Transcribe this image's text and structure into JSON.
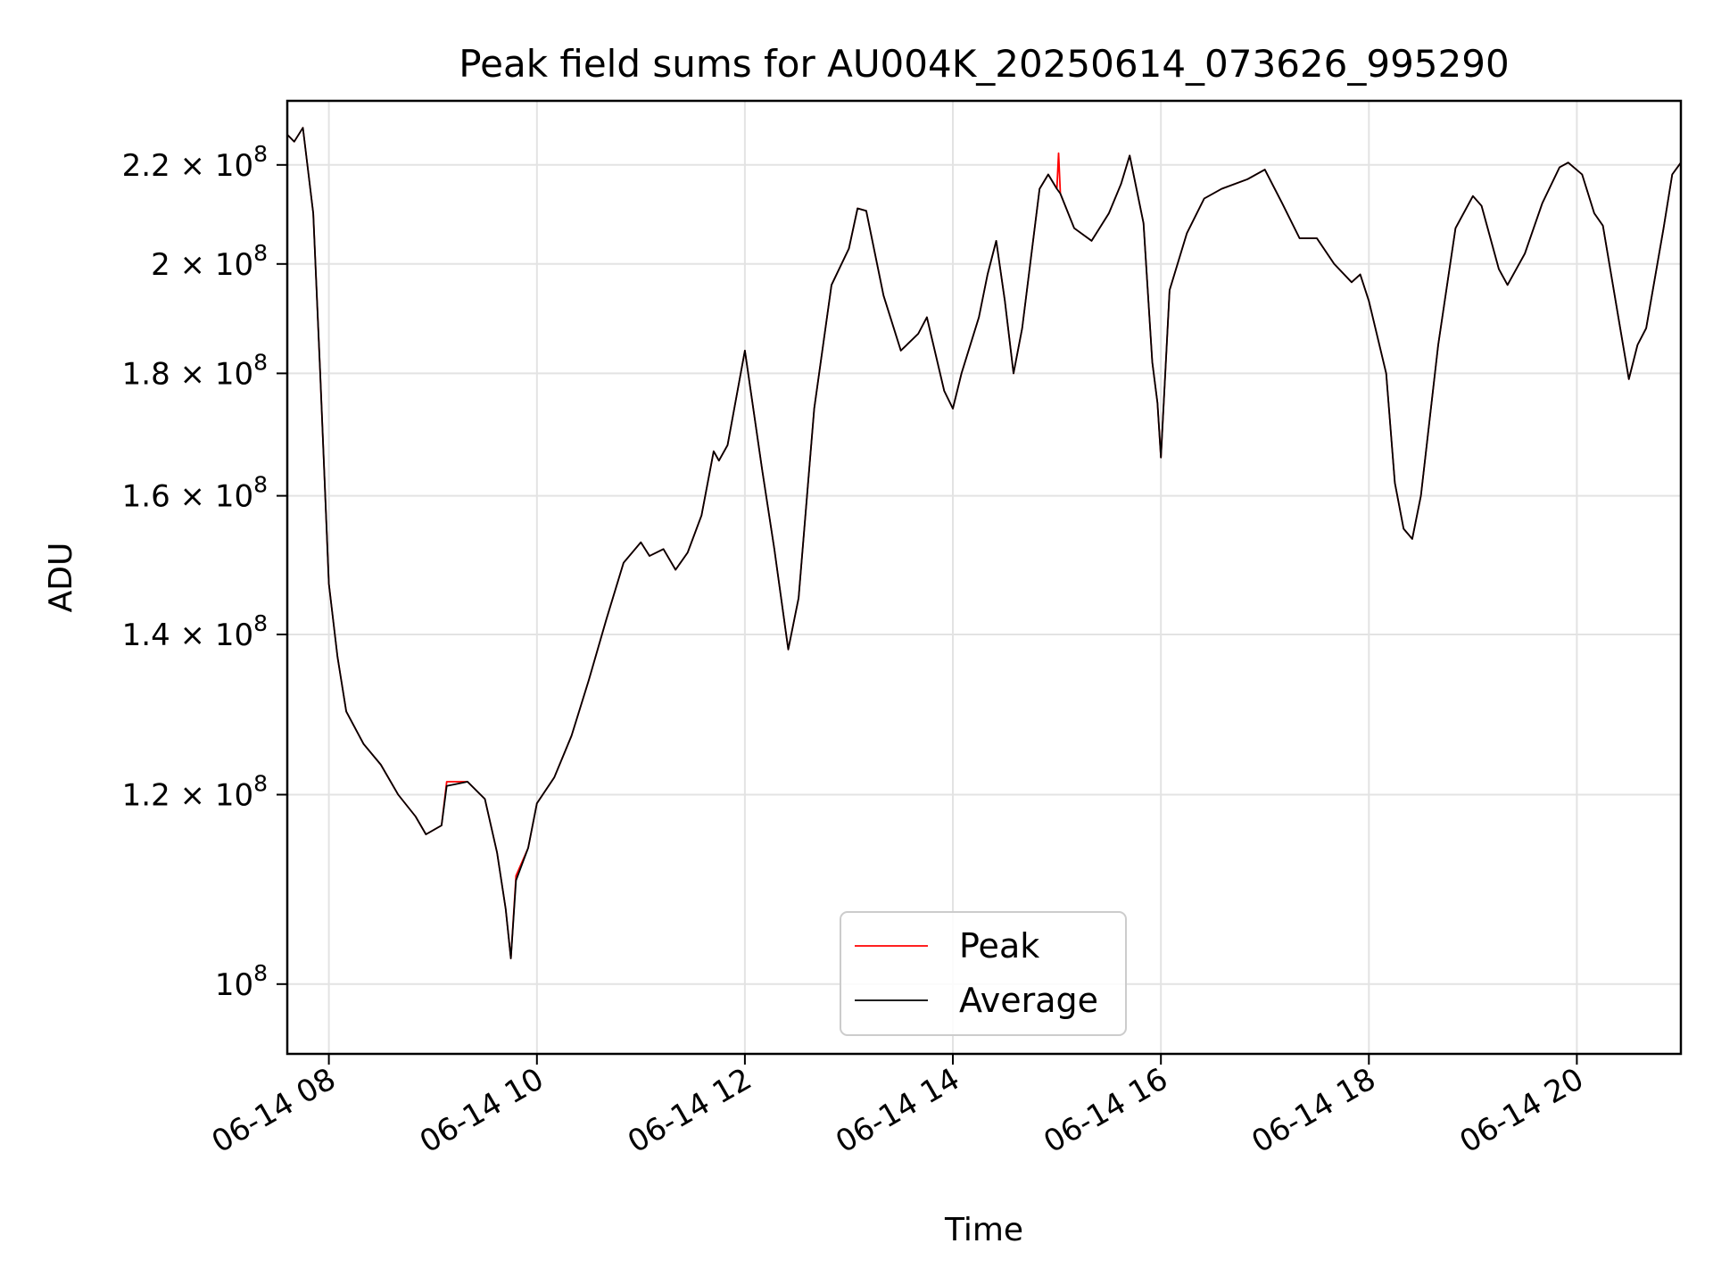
{
  "chart_data": {
    "type": "line",
    "title": "Peak field sums for AU004K_20250614_073626_995290",
    "xlabel": "Time",
    "ylabel": "ADU",
    "x_scale": "time",
    "y_scale": "log",
    "xlim": [
      "2025-06-14 07:36",
      "2025-06-14 21:00"
    ],
    "ylim": [
      93500000,
      234000000
    ],
    "grid": true,
    "legend_position": "lower center",
    "xticks": [
      {
        "value": "2025-06-14 08:00",
        "label": "06-14 08"
      },
      {
        "value": "2025-06-14 10:00",
        "label": "06-14 10"
      },
      {
        "value": "2025-06-14 12:00",
        "label": "06-14 12"
      },
      {
        "value": "2025-06-14 14:00",
        "label": "06-14 14"
      },
      {
        "value": "2025-06-14 16:00",
        "label": "06-14 16"
      },
      {
        "value": "2025-06-14 18:00",
        "label": "06-14 18"
      },
      {
        "value": "2025-06-14 20:00",
        "label": "06-14 20"
      }
    ],
    "yticks": [
      {
        "value": 100000000,
        "mantissa": "",
        "exp": "8"
      },
      {
        "value": 120000000,
        "mantissa": "1.2",
        "exp": "8"
      },
      {
        "value": 140000000,
        "mantissa": "1.4",
        "exp": "8"
      },
      {
        "value": 160000000,
        "mantissa": "1.6",
        "exp": "8"
      },
      {
        "value": 180000000,
        "mantissa": "1.8",
        "exp": "8"
      },
      {
        "value": 200000000,
        "mantissa": "2",
        "exp": "8"
      },
      {
        "value": 220000000,
        "mantissa": "2.2",
        "exp": "8"
      }
    ],
    "series": [
      {
        "name": "Peak",
        "color": "#ff0000",
        "points": [
          [
            "2025-06-14 07:36",
            226500000
          ],
          [
            "2025-06-14 07:40",
            225000000
          ],
          [
            "2025-06-14 07:45",
            228000000
          ],
          [
            "2025-06-14 07:51",
            210000000
          ],
          [
            "2025-06-14 07:55",
            180000000
          ],
          [
            "2025-06-14 08:00",
            147000000
          ],
          [
            "2025-06-14 08:05",
            137000000
          ],
          [
            "2025-06-14 08:10",
            130000000
          ],
          [
            "2025-06-14 08:20",
            126000000
          ],
          [
            "2025-06-14 08:30",
            123500000
          ],
          [
            "2025-06-14 08:40",
            120000000
          ],
          [
            "2025-06-14 08:50",
            117500000
          ],
          [
            "2025-06-14 08:56",
            115500000
          ],
          [
            "2025-06-14 09:05",
            116500000
          ],
          [
            "2025-06-14 09:08",
            121500000
          ],
          [
            "2025-06-14 09:20",
            121500000
          ],
          [
            "2025-06-14 09:30",
            119500000
          ],
          [
            "2025-06-14 09:37",
            113500000
          ],
          [
            "2025-06-14 09:42",
            107500000
          ],
          [
            "2025-06-14 09:45",
            102500000
          ],
          [
            "2025-06-14 09:48",
            111000000
          ],
          [
            "2025-06-14 09:55",
            114000000
          ],
          [
            "2025-06-14 10:00",
            119000000
          ],
          [
            "2025-06-14 10:10",
            122000000
          ],
          [
            "2025-06-14 10:20",
            127000000
          ],
          [
            "2025-06-14 10:30",
            134000000
          ],
          [
            "2025-06-14 10:40",
            142000000
          ],
          [
            "2025-06-14 10:50",
            150000000
          ],
          [
            "2025-06-14 11:00",
            153000000
          ],
          [
            "2025-06-14 11:05",
            151000000
          ],
          [
            "2025-06-14 11:13",
            152000000
          ],
          [
            "2025-06-14 11:20",
            149000000
          ],
          [
            "2025-06-14 11:27",
            151500000
          ],
          [
            "2025-06-14 11:35",
            157000000
          ],
          [
            "2025-06-14 11:42",
            167000000
          ],
          [
            "2025-06-14 11:45",
            165500000
          ],
          [
            "2025-06-14 11:50",
            168000000
          ],
          [
            "2025-06-14 12:00",
            184000000
          ],
          [
            "2025-06-14 12:10",
            164000000
          ],
          [
            "2025-06-14 12:17",
            152000000
          ],
          [
            "2025-06-14 12:25",
            138000000
          ],
          [
            "2025-06-14 12:31",
            145000000
          ],
          [
            "2025-06-14 12:40",
            174000000
          ],
          [
            "2025-06-14 12:50",
            196000000
          ],
          [
            "2025-06-14 13:00",
            203000000
          ],
          [
            "2025-06-14 13:05",
            211000000
          ],
          [
            "2025-06-14 13:10",
            210500000
          ],
          [
            "2025-06-14 13:20",
            194000000
          ],
          [
            "2025-06-14 13:30",
            184000000
          ],
          [
            "2025-06-14 13:40",
            187000000
          ],
          [
            "2025-06-14 13:45",
            190000000
          ],
          [
            "2025-06-14 13:55",
            177000000
          ],
          [
            "2025-06-14 14:00",
            174000000
          ],
          [
            "2025-06-14 14:05",
            180000000
          ],
          [
            "2025-06-14 14:15",
            190000000
          ],
          [
            "2025-06-14 14:20",
            198000000
          ],
          [
            "2025-06-14 14:25",
            204500000
          ],
          [
            "2025-06-14 14:30",
            193000000
          ],
          [
            "2025-06-14 14:35",
            180000000
          ],
          [
            "2025-06-14 14:40",
            188000000
          ],
          [
            "2025-06-14 14:50",
            215000000
          ],
          [
            "2025-06-14 14:55",
            218000000
          ],
          [
            "2025-06-14 15:00",
            215000000
          ],
          [
            "2025-06-14 15:01",
            222500000
          ],
          [
            "2025-06-14 15:02",
            214000000
          ],
          [
            "2025-06-14 15:10",
            207000000
          ],
          [
            "2025-06-14 15:20",
            204500000
          ],
          [
            "2025-06-14 15:30",
            210000000
          ],
          [
            "2025-06-14 15:37",
            216000000
          ],
          [
            "2025-06-14 15:42",
            222000000
          ],
          [
            "2025-06-14 15:50",
            208000000
          ],
          [
            "2025-06-14 15:55",
            182000000
          ],
          [
            "2025-06-14 15:58",
            175000000
          ],
          [
            "2025-06-14 16:00",
            166000000
          ],
          [
            "2025-06-14 16:05",
            195000000
          ],
          [
            "2025-06-14 16:15",
            206000000
          ],
          [
            "2025-06-14 16:25",
            213000000
          ],
          [
            "2025-06-14 16:35",
            215000000
          ],
          [
            "2025-06-14 16:50",
            217000000
          ],
          [
            "2025-06-14 17:00",
            219000000
          ],
          [
            "2025-06-14 17:10",
            212000000
          ],
          [
            "2025-06-14 17:20",
            205000000
          ],
          [
            "2025-06-14 17:30",
            205000000
          ],
          [
            "2025-06-14 17:40",
            200000000
          ],
          [
            "2025-06-14 17:50",
            196500000
          ],
          [
            "2025-06-14 17:55",
            198000000
          ],
          [
            "2025-06-14 18:00",
            193000000
          ],
          [
            "2025-06-14 18:10",
            180000000
          ],
          [
            "2025-06-14 18:15",
            162000000
          ],
          [
            "2025-06-14 18:20",
            155000000
          ],
          [
            "2025-06-14 18:25",
            153500000
          ],
          [
            "2025-06-14 18:30",
            160000000
          ],
          [
            "2025-06-14 18:40",
            185000000
          ],
          [
            "2025-06-14 18:50",
            207000000
          ],
          [
            "2025-06-14 19:00",
            213500000
          ],
          [
            "2025-06-14 19:05",
            211500000
          ],
          [
            "2025-06-14 19:15",
            199000000
          ],
          [
            "2025-06-14 19:20",
            196000000
          ],
          [
            "2025-06-14 19:30",
            202000000
          ],
          [
            "2025-06-14 19:40",
            212000000
          ],
          [
            "2025-06-14 19:50",
            219500000
          ],
          [
            "2025-06-14 19:55",
            220500000
          ],
          [
            "2025-06-14 20:03",
            218000000
          ],
          [
            "2025-06-14 20:10",
            210000000
          ],
          [
            "2025-06-14 20:15",
            207500000
          ],
          [
            "2025-06-14 20:25",
            188000000
          ],
          [
            "2025-06-14 20:30",
            179000000
          ],
          [
            "2025-06-14 20:35",
            185000000
          ],
          [
            "2025-06-14 20:40",
            188000000
          ],
          [
            "2025-06-14 20:50",
            207000000
          ],
          [
            "2025-06-14 20:55",
            218000000
          ],
          [
            "2025-06-14 21:00",
            220500000
          ]
        ]
      },
      {
        "name": "Average",
        "color": "#000000",
        "points": [
          [
            "2025-06-14 07:36",
            226500000
          ],
          [
            "2025-06-14 07:40",
            225000000
          ],
          [
            "2025-06-14 07:45",
            228000000
          ],
          [
            "2025-06-14 07:51",
            210000000
          ],
          [
            "2025-06-14 07:55",
            180000000
          ],
          [
            "2025-06-14 08:00",
            147000000
          ],
          [
            "2025-06-14 08:05",
            137000000
          ],
          [
            "2025-06-14 08:10",
            130000000
          ],
          [
            "2025-06-14 08:20",
            126000000
          ],
          [
            "2025-06-14 08:30",
            123500000
          ],
          [
            "2025-06-14 08:40",
            120000000
          ],
          [
            "2025-06-14 08:50",
            117500000
          ],
          [
            "2025-06-14 08:56",
            115500000
          ],
          [
            "2025-06-14 09:05",
            116500000
          ],
          [
            "2025-06-14 09:08",
            121000000
          ],
          [
            "2025-06-14 09:20",
            121500000
          ],
          [
            "2025-06-14 09:30",
            119500000
          ],
          [
            "2025-06-14 09:37",
            113500000
          ],
          [
            "2025-06-14 09:42",
            107500000
          ],
          [
            "2025-06-14 09:45",
            102500000
          ],
          [
            "2025-06-14 09:48",
            110500000
          ],
          [
            "2025-06-14 09:55",
            114000000
          ],
          [
            "2025-06-14 10:00",
            119000000
          ],
          [
            "2025-06-14 10:10",
            122000000
          ],
          [
            "2025-06-14 10:20",
            127000000
          ],
          [
            "2025-06-14 10:30",
            134000000
          ],
          [
            "2025-06-14 10:40",
            142000000
          ],
          [
            "2025-06-14 10:50",
            150000000
          ],
          [
            "2025-06-14 11:00",
            153000000
          ],
          [
            "2025-06-14 11:05",
            151000000
          ],
          [
            "2025-06-14 11:13",
            152000000
          ],
          [
            "2025-06-14 11:20",
            149000000
          ],
          [
            "2025-06-14 11:27",
            151500000
          ],
          [
            "2025-06-14 11:35",
            157000000
          ],
          [
            "2025-06-14 11:42",
            167000000
          ],
          [
            "2025-06-14 11:45",
            165500000
          ],
          [
            "2025-06-14 11:50",
            168000000
          ],
          [
            "2025-06-14 12:00",
            184000000
          ],
          [
            "2025-06-14 12:10",
            164000000
          ],
          [
            "2025-06-14 12:17",
            152000000
          ],
          [
            "2025-06-14 12:25",
            138000000
          ],
          [
            "2025-06-14 12:31",
            145000000
          ],
          [
            "2025-06-14 12:40",
            174000000
          ],
          [
            "2025-06-14 12:50",
            196000000
          ],
          [
            "2025-06-14 13:00",
            203000000
          ],
          [
            "2025-06-14 13:05",
            211000000
          ],
          [
            "2025-06-14 13:10",
            210500000
          ],
          [
            "2025-06-14 13:20",
            194000000
          ],
          [
            "2025-06-14 13:30",
            184000000
          ],
          [
            "2025-06-14 13:40",
            187000000
          ],
          [
            "2025-06-14 13:45",
            190000000
          ],
          [
            "2025-06-14 13:55",
            177000000
          ],
          [
            "2025-06-14 14:00",
            174000000
          ],
          [
            "2025-06-14 14:05",
            180000000
          ],
          [
            "2025-06-14 14:15",
            190000000
          ],
          [
            "2025-06-14 14:20",
            198000000
          ],
          [
            "2025-06-14 14:25",
            204500000
          ],
          [
            "2025-06-14 14:30",
            193000000
          ],
          [
            "2025-06-14 14:35",
            180000000
          ],
          [
            "2025-06-14 14:40",
            188000000
          ],
          [
            "2025-06-14 14:50",
            215000000
          ],
          [
            "2025-06-14 14:55",
            218000000
          ],
          [
            "2025-06-14 15:00",
            215000000
          ],
          [
            "2025-06-14 15:02",
            214000000
          ],
          [
            "2025-06-14 15:10",
            207000000
          ],
          [
            "2025-06-14 15:20",
            204500000
          ],
          [
            "2025-06-14 15:30",
            210000000
          ],
          [
            "2025-06-14 15:37",
            216000000
          ],
          [
            "2025-06-14 15:42",
            222000000
          ],
          [
            "2025-06-14 15:50",
            208000000
          ],
          [
            "2025-06-14 15:55",
            182000000
          ],
          [
            "2025-06-14 15:58",
            175000000
          ],
          [
            "2025-06-14 16:00",
            166000000
          ],
          [
            "2025-06-14 16:05",
            195000000
          ],
          [
            "2025-06-14 16:15",
            206000000
          ],
          [
            "2025-06-14 16:25",
            213000000
          ],
          [
            "2025-06-14 16:35",
            215000000
          ],
          [
            "2025-06-14 16:50",
            217000000
          ],
          [
            "2025-06-14 17:00",
            219000000
          ],
          [
            "2025-06-14 17:10",
            212000000
          ],
          [
            "2025-06-14 17:20",
            205000000
          ],
          [
            "2025-06-14 17:30",
            205000000
          ],
          [
            "2025-06-14 17:40",
            200000000
          ],
          [
            "2025-06-14 17:50",
            196500000
          ],
          [
            "2025-06-14 17:55",
            198000000
          ],
          [
            "2025-06-14 18:00",
            193000000
          ],
          [
            "2025-06-14 18:10",
            180000000
          ],
          [
            "2025-06-14 18:15",
            162000000
          ],
          [
            "2025-06-14 18:20",
            155000000
          ],
          [
            "2025-06-14 18:25",
            153500000
          ],
          [
            "2025-06-14 18:30",
            160000000
          ],
          [
            "2025-06-14 18:40",
            185000000
          ],
          [
            "2025-06-14 18:50",
            207000000
          ],
          [
            "2025-06-14 19:00",
            213500000
          ],
          [
            "2025-06-14 19:05",
            211500000
          ],
          [
            "2025-06-14 19:15",
            199000000
          ],
          [
            "2025-06-14 19:20",
            196000000
          ],
          [
            "2025-06-14 19:30",
            202000000
          ],
          [
            "2025-06-14 19:40",
            212000000
          ],
          [
            "2025-06-14 19:50",
            219500000
          ],
          [
            "2025-06-14 19:55",
            220500000
          ],
          [
            "2025-06-14 20:03",
            218000000
          ],
          [
            "2025-06-14 20:10",
            210000000
          ],
          [
            "2025-06-14 20:15",
            207500000
          ],
          [
            "2025-06-14 20:25",
            188000000
          ],
          [
            "2025-06-14 20:30",
            179000000
          ],
          [
            "2025-06-14 20:35",
            185000000
          ],
          [
            "2025-06-14 20:40",
            188000000
          ],
          [
            "2025-06-14 20:50",
            207000000
          ],
          [
            "2025-06-14 20:55",
            218000000
          ],
          [
            "2025-06-14 21:00",
            220500000
          ]
        ]
      }
    ]
  }
}
